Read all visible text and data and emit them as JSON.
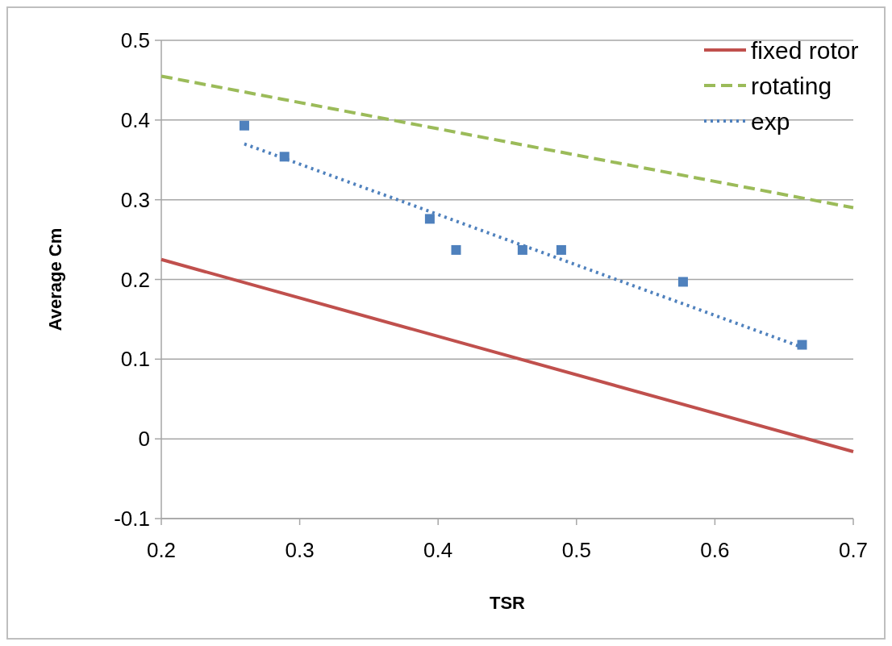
{
  "chart_data": {
    "type": "line",
    "xlabel": "TSR",
    "ylabel": "Average Cm",
    "xlim": [
      0.2,
      0.7
    ],
    "xticks": [
      0.2,
      0.3,
      0.4,
      0.5,
      0.6,
      0.7
    ],
    "ylim": [
      -0.1,
      0.5
    ],
    "yticks": [
      -0.1,
      0,
      0.1,
      0.2,
      0.3,
      0.4,
      0.5
    ],
    "grid": "y",
    "legend": "top right",
    "series": [
      {
        "name": "fixed rotor",
        "color": "#c0504d",
        "line_style": "solid",
        "marker": "none",
        "x": [
          0.2,
          0.7
        ],
        "values": [
          0.225,
          -0.016
        ]
      },
      {
        "name": "rotating",
        "color": "#9bbb59",
        "line_style": "dashed",
        "marker": "none",
        "x": [
          0.2,
          0.7
        ],
        "values": [
          0.455,
          0.29
        ]
      },
      {
        "name": "exp",
        "color": "#4f81bd",
        "line_style": "dotted",
        "marker": "none",
        "x": [
          0.26,
          0.663
        ],
        "values": [
          0.37,
          0.115
        ]
      },
      {
        "type": "scatter",
        "color": "#4f81bd",
        "marker": "square",
        "x": [
          0.26,
          0.289,
          0.394,
          0.413,
          0.461,
          0.489,
          0.577,
          0.663
        ],
        "values": [
          0.393,
          0.354,
          0.276,
          0.237,
          0.237,
          0.237,
          0.197,
          0.118
        ]
      }
    ]
  }
}
